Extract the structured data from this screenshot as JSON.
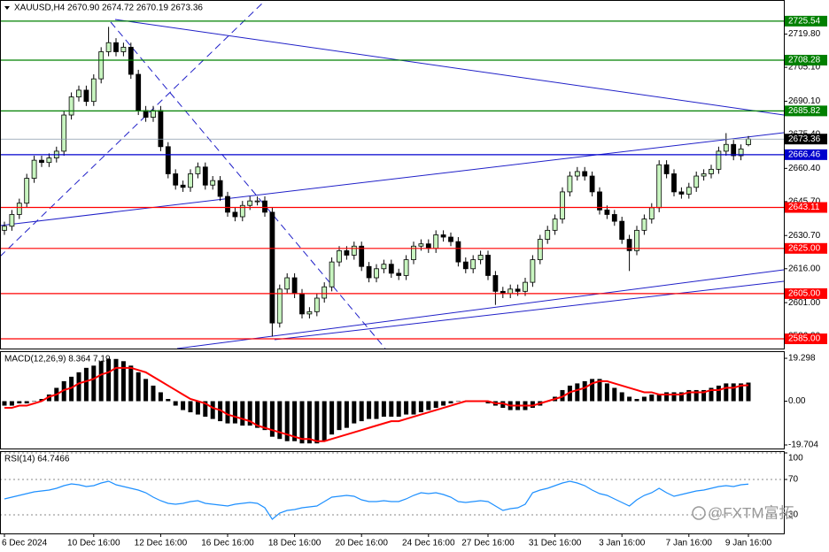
{
  "chart_data": [
    {
      "type": "candlestick",
      "title": "XAUUSD,H4 2670.90 2674.72 2670.19 2673.36",
      "up_color": "#c8f5c0",
      "down_color": "#000000",
      "ylim": [
        2580.7,
        2734.1
      ],
      "yticks": [
        {
          "value": 2719.8,
          "label": "2719.80"
        },
        {
          "value": 2705.1,
          "label": "2705.10"
        },
        {
          "value": 2690.1,
          "label": "2690.10"
        },
        {
          "value": 2675.4,
          "label": "2675.40"
        },
        {
          "value": 2660.4,
          "label": "2660.40"
        },
        {
          "value": 2645.7,
          "label": "2645.70"
        },
        {
          "value": 2630.7,
          "label": "2630.70"
        },
        {
          "value": 2616,
          "label": "2616.00"
        },
        {
          "value": 2601,
          "label": "2601.00"
        },
        {
          "value": 2586.3,
          "label": "2586.30"
        }
      ],
      "levels": [
        {
          "value": 2725.54,
          "label": "2725.54",
          "color": "#008000"
        },
        {
          "value": 2708.28,
          "label": "2708.28",
          "color": "#008000"
        },
        {
          "value": 2685.82,
          "label": "2685.82",
          "color": "#008000"
        },
        {
          "value": 2666.46,
          "label": "2666.46",
          "color": "#0000cd"
        },
        {
          "value": 2643.11,
          "label": "2643.11",
          "color": "#ff0000"
        },
        {
          "value": 2625,
          "label": "2625.00",
          "color": "#ff0000"
        },
        {
          "value": 2605,
          "label": "2605.00",
          "color": "#ff0000"
        },
        {
          "value": 2585,
          "label": "2585.00",
          "color": "#ff0000"
        }
      ],
      "xticks": [
        {
          "value": 0,
          "label": "6 Dec 2024"
        },
        {
          "value": 12,
          "label": "10 Dec 16:00"
        },
        {
          "value": 21,
          "label": "12 Dec 16:00"
        },
        {
          "value": 30,
          "label": "16 Dec 16:00"
        },
        {
          "value": 39,
          "label": "18 Dec 16:00"
        },
        {
          "value": 48,
          "label": "20 Dec 16:00"
        },
        {
          "value": 57,
          "label": "24 Dec 16:00"
        },
        {
          "value": 65,
          "label": "27 Dec 16:00"
        },
        {
          "value": 74,
          "label": "31 Dec 16:00"
        },
        {
          "value": 83,
          "label": "3 Jan 16:00"
        },
        {
          "value": 92,
          "label": "7 Jan 16:00"
        },
        {
          "value": 100,
          "label": "9 Jan 16:00"
        }
      ],
      "open": [
        2633,
        2634.8,
        2640,
        2645,
        2656,
        2664,
        2663,
        2665,
        2668,
        2684,
        2692,
        2695,
        2690,
        2700,
        2712,
        2716,
        2712,
        2714,
        2702,
        2686,
        2683,
        2686,
        2670,
        2658,
        2653,
        2652,
        2658,
        2661,
        2653,
        2655,
        2648,
        2641,
        2639,
        2644,
        2646,
        2646,
        2641,
        2592,
        2607,
        2612,
        2605,
        2596,
        2597,
        2603,
        2608,
        2619,
        2624,
        2622,
        2626,
        2617,
        2612,
        2616,
        2618,
        2614,
        2613,
        2620,
        2626,
        2627,
        2625,
        2631,
        2630,
        2628,
        2619,
        2616,
        2620,
        2622,
        2613,
        2606,
        2605,
        2607,
        2606,
        2610,
        2620,
        2629,
        2633,
        2638,
        2650,
        2657,
        2659,
        2657,
        2650,
        2642,
        2640,
        2637,
        2629,
        2624,
        2633,
        2638,
        2643,
        2662,
        2658,
        2650,
        2649,
        2652,
        2657,
        2658,
        2660,
        2668,
        2671,
        2666,
        2670.9
      ],
      "high": [
        2636.8,
        2642,
        2647,
        2658,
        2666,
        2666,
        2667,
        2670,
        2686,
        2694,
        2697,
        2697,
        2702,
        2714,
        2723,
        2718,
        2716,
        2716,
        2704,
        2688,
        2688,
        2688,
        2672,
        2660,
        2655,
        2660,
        2663,
        2663,
        2657,
        2657,
        2650,
        2643,
        2646,
        2648,
        2648,
        2648,
        2643,
        2609,
        2614,
        2614,
        2607,
        2599,
        2605,
        2610,
        2621,
        2626,
        2626,
        2628,
        2628,
        2619,
        2618,
        2620,
        2620,
        2616,
        2622,
        2628,
        2629,
        2629,
        2633,
        2633,
        2632,
        2630,
        2621,
        2622,
        2624,
        2624,
        2615,
        2608,
        2609,
        2609,
        2612,
        2622,
        2631,
        2635,
        2640,
        2652,
        2659,
        2661,
        2661,
        2659,
        2652,
        2644,
        2642,
        2639,
        2631,
        2635,
        2640,
        2645,
        2664,
        2664,
        2660,
        2652,
        2654,
        2659,
        2660,
        2662,
        2670,
        2676,
        2673,
        2671,
        2674.72
      ],
      "low": [
        2631,
        2632.8,
        2638,
        2643,
        2654,
        2661,
        2661,
        2663,
        2666,
        2682,
        2690,
        2688,
        2688,
        2698,
        2710,
        2710,
        2710,
        2700,
        2684,
        2681,
        2681,
        2668,
        2656,
        2651,
        2650,
        2650,
        2656,
        2651,
        2651,
        2646,
        2639,
        2637,
        2637,
        2642,
        2644,
        2639,
        2586,
        2590,
        2605,
        2603,
        2594,
        2594,
        2595,
        2601,
        2606,
        2617,
        2620,
        2620,
        2615,
        2610,
        2610,
        2614,
        2612,
        2611,
        2611,
        2618,
        2624,
        2623,
        2623,
        2628,
        2626,
        2617,
        2614,
        2614,
        2618,
        2611,
        2600,
        2603,
        2603,
        2604,
        2604,
        2608,
        2618,
        2627,
        2631,
        2636,
        2648,
        2655,
        2655,
        2648,
        2640,
        2638,
        2635,
        2627,
        2615,
        2622,
        2631,
        2636,
        2641,
        2656,
        2648,
        2647,
        2647,
        2650,
        2655,
        2656,
        2658,
        2666,
        2664,
        2664,
        2670.19
      ],
      "close": [
        2634.8,
        2640,
        2645,
        2656,
        2664,
        2663,
        2665,
        2668,
        2684,
        2692,
        2695,
        2690,
        2700,
        2712,
        2716,
        2712,
        2714,
        2702,
        2686,
        2683,
        2686,
        2670,
        2658,
        2653,
        2652,
        2658,
        2661,
        2653,
        2655,
        2648,
        2641,
        2639,
        2644,
        2646,
        2646,
        2641,
        2592,
        2607,
        2612,
        2605,
        2596,
        2597,
        2603,
        2608,
        2619,
        2624,
        2622,
        2626,
        2617,
        2612,
        2616,
        2618,
        2614,
        2613,
        2620,
        2626,
        2627,
        2625,
        2631,
        2630,
        2628,
        2619,
        2616,
        2620,
        2622,
        2613,
        2606,
        2605,
        2607,
        2606,
        2610,
        2620,
        2629,
        2633,
        2638,
        2650,
        2657,
        2659,
        2657,
        2650,
        2642,
        2640,
        2637,
        2629,
        2624,
        2633,
        2638,
        2643,
        2662,
        2658,
        2650,
        2649,
        2652,
        2657,
        2658,
        2660,
        2668,
        2671,
        2666,
        2669,
        2673.36
      ]
    },
    {
      "type": "bar",
      "title": "MACD(12,26,9) 8.364 7.19",
      "color": "#000000",
      "line_color": "#ff0000",
      "ylim": [
        -21.3,
        22.1
      ],
      "yticks": [
        19.298,
        {
          "value": 0,
          "label": "0.00"
        },
        -19.704
      ],
      "values": [
        -2,
        -2,
        -1,
        -1,
        0,
        1,
        3,
        6,
        9,
        11,
        13,
        15,
        16,
        18,
        19,
        19,
        18,
        16,
        13,
        10,
        7,
        4,
        1,
        -2,
        -4,
        -5,
        -6,
        -7,
        -8,
        -9,
        -10,
        -10,
        -11,
        -11,
        -12,
        -13,
        -16,
        -17,
        -18,
        -18,
        -19,
        -19,
        -19,
        -18,
        -15,
        -13,
        -12,
        -10,
        -9,
        -8,
        -8,
        -7,
        -7,
        -7,
        -6,
        -6,
        -5,
        -4,
        -3,
        -2,
        -1,
        0,
        0,
        0,
        0,
        -1,
        -2,
        -3,
        -4,
        -4,
        -4,
        -3,
        -2,
        0,
        2,
        5,
        7,
        8,
        9,
        10,
        10,
        8,
        6,
        4,
        2,
        1,
        2,
        3,
        3,
        4,
        4,
        4,
        5,
        5,
        5,
        6,
        7,
        8,
        8,
        8,
        8.364
      ],
      "line_values": [
        -3,
        -3,
        -2,
        -2,
        -1,
        0,
        2,
        3,
        5,
        6,
        8,
        9,
        10,
        12,
        13,
        15,
        15,
        15,
        14,
        13,
        11,
        9,
        7,
        5,
        3,
        1,
        0,
        -1,
        -3,
        -4,
        -6,
        -7,
        -8,
        -9,
        -11,
        -12,
        -13,
        -14,
        -15,
        -16,
        -17,
        -17,
        -18,
        -18,
        -17,
        -16,
        -15,
        -14,
        -13,
        -12,
        -11,
        -10,
        -9,
        -9,
        -8,
        -7,
        -6,
        -5,
        -4,
        -3,
        -2,
        -1,
        0,
        0,
        0,
        0,
        -1,
        -1,
        -2,
        -2,
        -2,
        -2,
        -1,
        0,
        1,
        2,
        4,
        5,
        6,
        8,
        9,
        9,
        8,
        7,
        6,
        5,
        4,
        4,
        3,
        3,
        3,
        3,
        4,
        4,
        4,
        5,
        5,
        6,
        6,
        7,
        7.19
      ]
    },
    {
      "type": "line",
      "title": "RSI(14) 64.7466",
      "color": "#1e90ff",
      "ylim": [
        10,
        100
      ],
      "yticks": [
        100,
        70,
        30
      ],
      "values": [
        48,
        50,
        52,
        54,
        56,
        57,
        58,
        60,
        63,
        65,
        64,
        62,
        63,
        66,
        68,
        64,
        62,
        60,
        58,
        55,
        50,
        46,
        43,
        42,
        43,
        45,
        46,
        43,
        42,
        41,
        40,
        42,
        43,
        44,
        43,
        38,
        25,
        32,
        35,
        36,
        38,
        39,
        40,
        45,
        50,
        51,
        52,
        51,
        47,
        45,
        45,
        46,
        45,
        45,
        48,
        52,
        55,
        54,
        55,
        53,
        50,
        45,
        44,
        45,
        46,
        45,
        40,
        35,
        37,
        38,
        42,
        55,
        58,
        60,
        63,
        66,
        68,
        66,
        63,
        58,
        54,
        52,
        48,
        44,
        40,
        47,
        52,
        55,
        60,
        55,
        51,
        53,
        55,
        57,
        58,
        60,
        62,
        63,
        62,
        64,
        64.7466
      ]
    }
  ],
  "watermark": "@FXTM富拓"
}
